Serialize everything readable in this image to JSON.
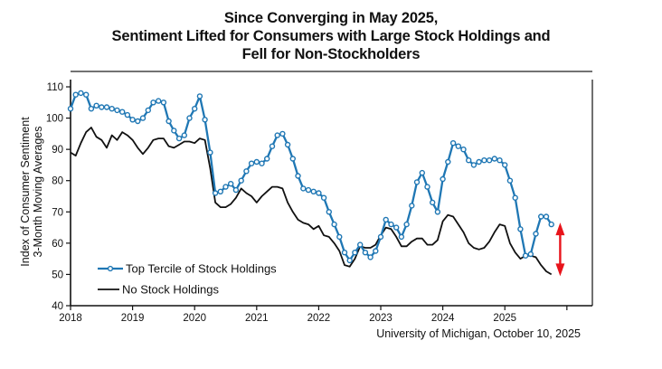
{
  "chart_data": {
    "type": "line",
    "title": [
      "Since Converging in May 2025,",
      "Sentiment Lifted for Consumers with Large Stock Holdings and",
      "Fell for Non-Stockholders"
    ],
    "ylabel": [
      "Index of Consumer Sentiment",
      "3-Month Moving Averages"
    ],
    "xlabel": "",
    "ylim": [
      40,
      110
    ],
    "yticks": [
      40,
      50,
      60,
      70,
      80,
      90,
      100,
      110
    ],
    "xlim": [
      "2018-01",
      "2026-05"
    ],
    "xticks": [
      "2018",
      "2019",
      "2020",
      "2021",
      "2022",
      "2023",
      "2024",
      "2025",
      ""
    ],
    "x_start": "2018-01",
    "frequency": "monthly",
    "grid": false,
    "legend_position": "bottom-left",
    "series": [
      {
        "name": "Top Tercile of Stock Holdings",
        "color": "#1f77b4",
        "marker": "open-circle",
        "values": [
          103,
          107.5,
          108,
          107.5,
          103,
          104,
          103.5,
          103.5,
          103,
          102.5,
          102,
          101,
          99.5,
          99,
          100,
          102.5,
          105,
          105.5,
          105,
          99,
          96,
          93.5,
          94.5,
          100,
          103,
          107,
          99.5,
          89,
          76,
          76.5,
          78,
          79,
          77,
          80,
          83,
          85.5,
          86,
          85.5,
          87,
          91,
          94.5,
          95,
          91.5,
          87,
          81.5,
          77.5,
          77,
          76.5,
          76,
          74.5,
          70,
          66,
          62,
          57,
          54.5,
          57,
          59.5,
          57,
          55.5,
          57.5,
          62,
          67.5,
          66,
          65,
          62,
          66,
          72,
          79.5,
          82.5,
          78,
          73,
          70,
          80.5,
          86,
          92,
          91,
          90,
          86.5,
          85,
          86,
          86.5,
          86.5,
          87,
          86.5,
          85,
          80,
          74.5,
          64.5,
          56,
          56.5,
          63,
          68.5,
          68.5,
          66
        ]
      },
      {
        "name": "No Stock Holdings",
        "color": "#111111",
        "marker": "none",
        "values": [
          89,
          88,
          92,
          95.5,
          97,
          94,
          93,
          90.5,
          94.5,
          93,
          95.5,
          94.5,
          93,
          90.5,
          88.5,
          90.5,
          93,
          93.5,
          93.5,
          91,
          90.5,
          91.5,
          92.5,
          92.5,
          92,
          93.5,
          93,
          84,
          73,
          71.5,
          71.5,
          72.5,
          74.5,
          77.5,
          76,
          75,
          73,
          75,
          76.5,
          78,
          78,
          77.5,
          73,
          70,
          67.5,
          66.5,
          66,
          64.5,
          65.5,
          62.5,
          62,
          60,
          57.5,
          53,
          52.5,
          55,
          59,
          58.5,
          58.5,
          59.5,
          62.5,
          65,
          64.5,
          62,
          59,
          59,
          60.5,
          61.5,
          61.5,
          59.5,
          59.5,
          61,
          67,
          69,
          68.5,
          66,
          63.5,
          60,
          58.5,
          58,
          58.5,
          60.5,
          63.5,
          66,
          65.5,
          60,
          57,
          55,
          56,
          56,
          55.5,
          53,
          51,
          50
        ]
      }
    ],
    "annotations": [
      {
        "type": "double-arrow",
        "color": "#e8141b",
        "x": "2025-11",
        "y_from": 66,
        "y_to": 50,
        "meaning": "gap between series"
      }
    ],
    "source": "University of Michigan, October 10, 2025"
  }
}
